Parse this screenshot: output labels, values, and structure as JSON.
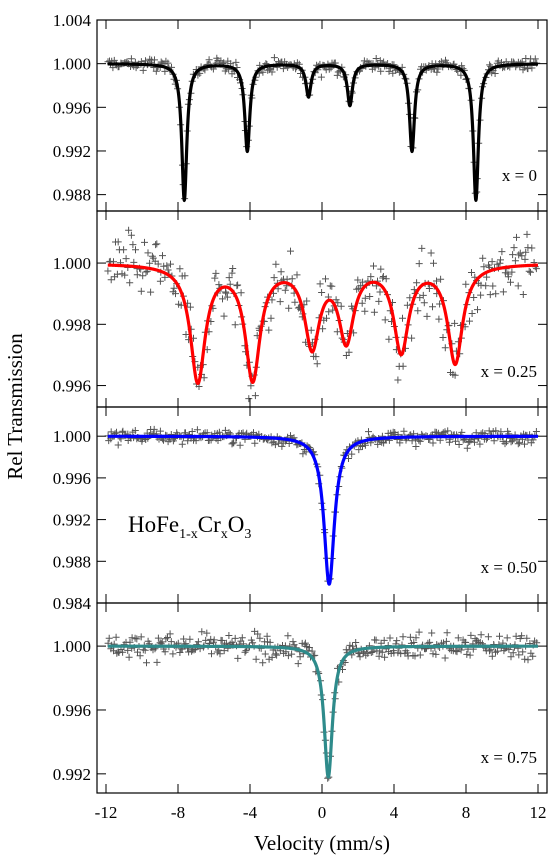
{
  "chart_data": {
    "type": "scatter",
    "xlabel": "Velocity (mm/s)",
    "ylabel": "Rel Transmission",
    "xlim": [
      -12.5,
      12.5
    ],
    "x_ticks": [
      -12,
      -8,
      -4,
      0,
      4,
      8,
      12
    ],
    "x_tick_labels": [
      "-12",
      "-8",
      "-4",
      "0",
      "4",
      "8",
      "12"
    ],
    "annotation": {
      "parts": [
        {
          "text": "HoFe",
          "style": "normal"
        },
        {
          "text": "1-x",
          "style": "sub"
        },
        {
          "text": "Cr",
          "style": "normal"
        },
        {
          "text": "x",
          "style": "sub"
        },
        {
          "text": "O",
          "style": "normal"
        },
        {
          "text": "3",
          "style": "sub"
        }
      ]
    },
    "panels": [
      {
        "label": "x = 0",
        "color": "#000000",
        "ylim": [
          0.9865,
          1.004
        ],
        "y_ticks": [
          1.004,
          1.0,
          0.996,
          0.992,
          0.988
        ],
        "y_tick_labels": [
          "1.004",
          "1.000",
          "0.996",
          "0.992",
          "0.988"
        ],
        "fit": {
          "baseline": 1.0,
          "width": 0.17,
          "lines": [
            {
              "position": -7.65,
              "depth": 0.0125
            },
            {
              "position": -4.15,
              "depth": 0.008
            },
            {
              "position": -0.75,
              "depth": 0.003
            },
            {
              "position": 1.55,
              "depth": 0.0038
            },
            {
              "position": 5.0,
              "depth": 0.008
            },
            {
              "position": 8.55,
              "depth": 0.0125
            }
          ]
        },
        "noise": 0.00055
      },
      {
        "label": "x = 0.25",
        "color": "#ff0000",
        "ylim": [
          0.9953,
          1.0017
        ],
        "y_ticks": [
          1.0,
          0.998,
          0.996
        ],
        "y_tick_labels": [
          "1.000",
          "0.998",
          "0.996"
        ],
        "fit": {
          "baseline": 1.0,
          "width": 0.5,
          "lines": [
            {
              "position": -6.9,
              "depth": 0.0038
            },
            {
              "position": -3.85,
              "depth": 0.0037
            },
            {
              "position": -0.55,
              "depth": 0.0026
            },
            {
              "position": 1.35,
              "depth": 0.0024
            },
            {
              "position": 4.4,
              "depth": 0.0028
            },
            {
              "position": 7.4,
              "depth": 0.0032
            }
          ]
        },
        "noise": 0.00085
      },
      {
        "label": "x = 0.50",
        "color": "#0000ff",
        "ylim": [
          0.984,
          1.0028
        ],
        "y_ticks": [
          1.0,
          0.996,
          0.992,
          0.988,
          0.984
        ],
        "y_tick_labels": [
          "1.000",
          "0.996",
          "0.992",
          "0.988",
          "0.984"
        ],
        "fit": {
          "baseline": 1.0,
          "width": 0.35,
          "lines": [
            {
              "position": 0.4,
              "depth": 0.0142
            }
          ]
        },
        "noise": 0.0006
      },
      {
        "label": "x = 0.75",
        "color": "#2e8b8b",
        "ylim": [
          0.9908,
          1.0027
        ],
        "y_ticks": [
          1.0,
          0.996,
          0.992
        ],
        "y_tick_labels": [
          "1.000",
          "0.996",
          "0.992"
        ],
        "fit": {
          "baseline": 1.0,
          "width": 0.28,
          "lines": [
            {
              "position": 0.35,
              "depth": 0.0082
            }
          ]
        },
        "noise": 0.00065
      }
    ]
  }
}
